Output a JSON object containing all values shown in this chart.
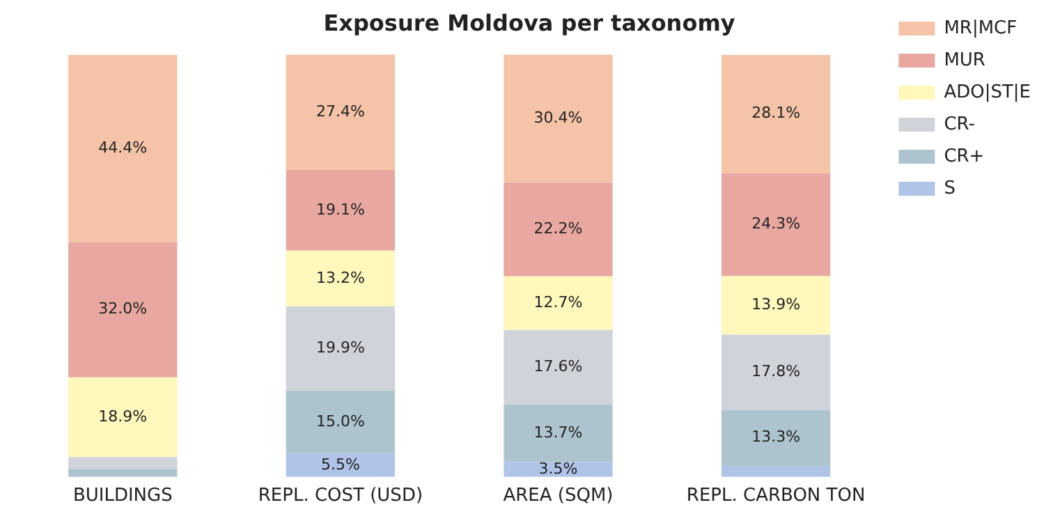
{
  "chart_data": {
    "type": "bar",
    "title": "Exposure Moldova per taxonomy",
    "categories": [
      "BUILDINGS",
      "REPL. COST (USD)",
      "AREA (SQM)",
      "REPL. CARBON TON"
    ],
    "stacked": true,
    "ylim": [
      0,
      100
    ],
    "tick_labels": "x",
    "grid": false,
    "legend": "top right",
    "series": [
      {
        "name": "S",
        "color": "#b0c4e8",
        "values": [
          0,
          5.5,
          3.5,
          2.6
        ],
        "value_labels": [
          null,
          "5.5%",
          "3.5%",
          null
        ]
      },
      {
        "name": "CR+",
        "color": "#adc4ce",
        "values": [
          1.9,
          15.0,
          13.7,
          13.3
        ],
        "value_labels": [
          null,
          "15.0%",
          "13.7%",
          "13.3%"
        ]
      },
      {
        "name": "CR-",
        "color": "#d1d3da",
        "values": [
          2.8,
          19.9,
          17.6,
          17.8
        ],
        "value_labels": [
          null,
          "19.9%",
          "17.6%",
          "17.8%"
        ]
      },
      {
        "name": "ADO|ST|E",
        "color": "#fff7bb",
        "values": [
          18.9,
          13.2,
          12.7,
          13.9
        ],
        "value_labels": [
          "18.9%",
          "13.2%",
          "12.7%",
          "13.9%"
        ]
      },
      {
        "name": "MUR",
        "color": "#e8a7a0",
        "values": [
          32.0,
          19.1,
          22.2,
          24.3
        ],
        "value_labels": [
          "32.0%",
          "19.1%",
          "22.2%",
          "24.3%"
        ]
      },
      {
        "name": "MR|MCF",
        "color": "#f4c3a8",
        "values": [
          44.4,
          27.4,
          30.4,
          28.1
        ],
        "value_labels": [
          "44.4%",
          "27.4%",
          "30.4%",
          "28.1%"
        ]
      }
    ]
  }
}
